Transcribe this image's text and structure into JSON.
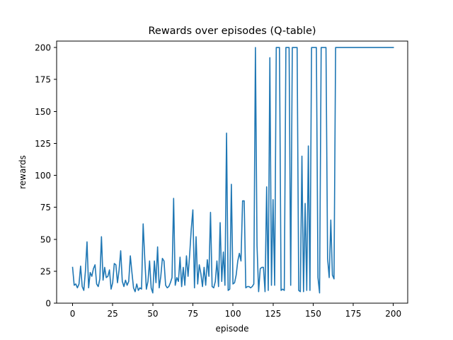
{
  "chart_data": {
    "type": "line",
    "title": "Rewards over episodes (Q-table)",
    "xlabel": "episode",
    "ylabel": "rewards",
    "xlim": [
      -9.95,
      208.95
    ],
    "ylim": [
      0,
      205
    ],
    "xticks": [
      0,
      25,
      50,
      75,
      100,
      125,
      150,
      175,
      200
    ],
    "yticks": [
      0,
      25,
      50,
      75,
      100,
      125,
      150,
      175,
      200
    ],
    "grid": false,
    "legend": false,
    "colors": {
      "series": "#1f77b4",
      "axis": "#000000",
      "background": "#ffffff"
    },
    "series": [
      {
        "values": [
          28,
          14,
          15,
          12,
          15,
          29,
          13,
          10,
          25,
          48,
          12,
          24,
          21,
          27,
          30,
          15,
          13,
          19,
          52,
          18,
          28,
          20,
          21,
          26,
          11,
          16,
          31,
          30,
          16,
          26,
          41,
          17,
          13,
          18,
          14,
          17,
          37,
          24,
          12,
          9,
          15,
          10,
          12,
          11,
          62,
          35,
          11,
          17,
          33,
          12,
          8,
          33,
          16,
          44,
          12,
          21,
          35,
          33,
          14,
          12,
          13,
          16,
          20,
          82,
          14,
          20,
          17,
          36,
          13,
          28,
          14,
          37,
          21,
          38,
          58,
          73,
          12,
          52,
          15,
          30,
          23,
          13,
          28,
          14,
          34,
          21,
          71,
          13,
          12,
          17,
          33,
          13,
          63,
          17,
          40,
          14,
          133,
          10,
          11,
          93,
          15,
          16,
          22,
          33,
          39,
          33,
          80,
          80,
          12,
          13,
          13,
          12,
          13,
          15,
          200,
          45,
          9,
          27,
          28,
          28,
          9,
          91,
          10,
          192,
          14,
          81,
          14,
          200,
          200,
          200,
          10,
          11,
          10,
          200,
          200,
          200,
          14,
          200,
          200,
          200,
          200,
          10,
          9,
          115,
          9,
          78,
          10,
          123,
          10,
          200,
          200,
          200,
          200,
          20,
          8,
          200,
          200,
          200,
          200,
          35,
          20,
          65,
          22,
          19,
          200,
          200,
          200,
          200,
          200,
          200,
          200,
          200,
          200,
          200,
          200,
          200,
          200,
          200,
          200,
          200,
          200,
          200,
          200,
          200,
          200,
          200,
          200,
          200,
          200,
          200,
          200,
          200,
          200,
          200,
          200,
          200,
          200,
          200,
          200,
          200,
          200
        ]
      }
    ]
  }
}
